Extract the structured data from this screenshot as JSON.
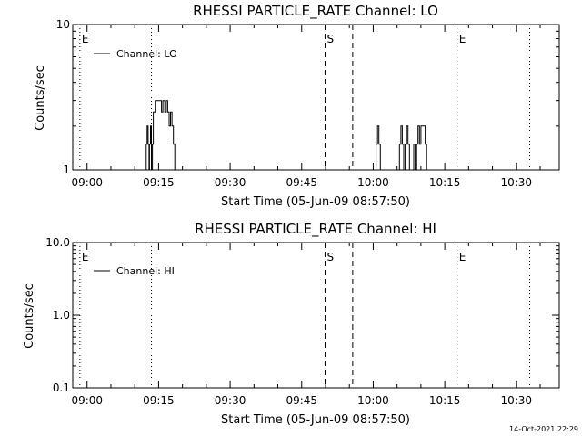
{
  "chart_data": [
    {
      "type": "line",
      "title": "RHESSI PARTICLE_RATE Channel: LO",
      "xlabel": "Start Time (05-Jun-09 08:57:50)",
      "ylabel": "Counts/sec",
      "x_unit": "minutes after 09:00",
      "xlim": [
        -3,
        99
      ],
      "ylim": [
        1,
        10
      ],
      "yscale": "log",
      "x_tick_values": [
        0,
        15,
        30,
        45,
        60,
        75,
        90
      ],
      "x_tick_labels": [
        "09:00",
        "09:15",
        "09:30",
        "09:45",
        "10:00",
        "10:15",
        "10:30"
      ],
      "y_tick_values": [
        1,
        10
      ],
      "y_tick_labels": [
        "1",
        "10"
      ],
      "legend": {
        "label": "Channel: LO",
        "position": "top-left"
      },
      "markers": [
        {
          "x": -1.5,
          "style": "dotted",
          "label": "E"
        },
        {
          "x": 13.5,
          "style": "dotted",
          "label": ""
        },
        {
          "x": 49.9,
          "style": "dashed",
          "label": "S"
        },
        {
          "x": 55.7,
          "style": "dashed",
          "label": ""
        },
        {
          "x": 77.6,
          "style": "dotted",
          "label": "E"
        },
        {
          "x": 92.8,
          "style": "dotted",
          "label": ""
        }
      ],
      "series": [
        {
          "name": "Channel: LO",
          "x": [
            -1.6,
            12.3,
            12.4,
            12.6,
            12.8,
            13.0,
            13.1,
            13.3,
            13.5,
            13.7,
            13.9,
            14.3,
            14.6,
            14.9,
            15.3,
            15.6,
            15.9,
            16.3,
            16.6,
            16.9,
            17.2,
            17.5,
            17.8,
            18.1,
            18.4,
            18.7,
            19.0,
            19.3,
            60.3,
            60.6,
            60.9,
            61.2,
            61.5,
            65.2,
            65.5,
            65.8,
            66.1,
            66.4,
            66.7,
            67.0,
            67.3,
            67.6,
            67.9,
            68.2,
            68.5,
            68.8,
            69.1,
            69.4,
            69.7,
            70.0,
            70.3,
            70.6,
            70.9,
            71.2,
            71.5,
            71.8,
            72.1,
            95.5
          ],
          "y": [
            1,
            1,
            1.5,
            2,
            1.5,
            1,
            1.5,
            2,
            1,
            1.5,
            2.5,
            3,
            3,
            3,
            3,
            2.5,
            3,
            2.5,
            3,
            2.5,
            2,
            2.5,
            2,
            1.5,
            1,
            1,
            1,
            1,
            1,
            1.5,
            2,
            1.5,
            1,
            1,
            1.5,
            2,
            1.5,
            1,
            1.5,
            2,
            1.5,
            1,
            1,
            1,
            1.5,
            1,
            1.5,
            2,
            1.5,
            2,
            2,
            2,
            1.5,
            1,
            1,
            1,
            1,
            1
          ]
        }
      ]
    },
    {
      "type": "line",
      "title": "RHESSI PARTICLE_RATE Channel: HI",
      "xlabel": "Start Time (05-Jun-09 08:57:50)",
      "ylabel": "Counts/sec",
      "x_unit": "minutes after 09:00",
      "xlim": [
        -3,
        99
      ],
      "ylim": [
        0.1,
        10
      ],
      "yscale": "log",
      "x_tick_values": [
        0,
        15,
        30,
        45,
        60,
        75,
        90
      ],
      "x_tick_labels": [
        "09:00",
        "09:15",
        "09:30",
        "09:45",
        "10:00",
        "10:15",
        "10:30"
      ],
      "y_tick_values": [
        0.1,
        1,
        10
      ],
      "y_tick_labels": [
        "0.1",
        "1.0",
        "10.0"
      ],
      "legend": {
        "label": "Channel: HI",
        "position": "top-left"
      },
      "markers": [
        {
          "x": -1.5,
          "style": "dotted",
          "label": "E"
        },
        {
          "x": 13.5,
          "style": "dotted",
          "label": ""
        },
        {
          "x": 49.9,
          "style": "dashed",
          "label": "S"
        },
        {
          "x": 55.7,
          "style": "dashed",
          "label": ""
        },
        {
          "x": 77.6,
          "style": "dotted",
          "label": "E"
        },
        {
          "x": 92.8,
          "style": "dotted",
          "label": ""
        }
      ],
      "series": [
        {
          "name": "Channel: HI",
          "x": [],
          "y": []
        }
      ]
    }
  ],
  "footer": {
    "timestamp": "14-Oct-2021 22:29"
  }
}
